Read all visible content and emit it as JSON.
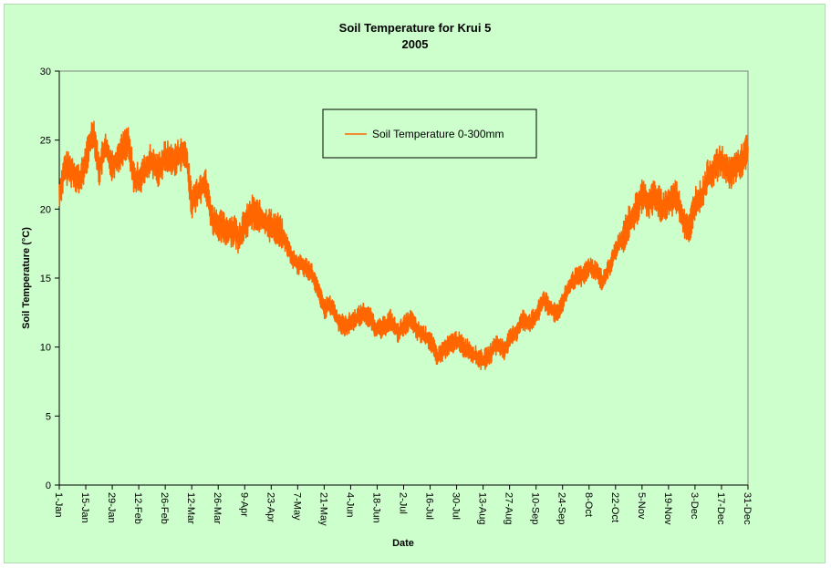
{
  "chart_data": {
    "type": "line",
    "title": "Soil Temperature for Krui 5",
    "subtitle": "2005",
    "xlabel": "Date",
    "ylabel": "Soil Temperature (°C)",
    "ylim": [
      0,
      30
    ],
    "yticks": [
      "0",
      "5",
      "10",
      "15",
      "20",
      "25",
      "30"
    ],
    "xlim": [
      "2005-01-01",
      "2005-12-31"
    ],
    "xtick_labels": [
      "1-Jan",
      "15-Jan",
      "29-Jan",
      "12-Feb",
      "26-Feb",
      "12-Mar",
      "26-Mar",
      "9-Apr",
      "23-Apr",
      "7-May",
      "21-May",
      "4-Jun",
      "18-Jun",
      "2-Jul",
      "16-Jul",
      "30-Jul",
      "13-Aug",
      "27-Aug",
      "10-Sep",
      "24-Sep",
      "8-Oct",
      "22-Oct",
      "5-Nov",
      "19-Nov",
      "3-Dec",
      "17-Dec",
      "31-Dec"
    ],
    "grid": false,
    "legend": {
      "position": "top-center",
      "entries": [
        "Soil Temperature  0-300mm"
      ]
    },
    "series": [
      {
        "name": "Soil Temperature  0-300mm",
        "color": "#ff6600",
        "x": [
          "2005-01-01",
          "2005-01-04",
          "2005-01-08",
          "2005-01-12",
          "2005-01-15",
          "2005-01-19",
          "2005-01-22",
          "2005-01-25",
          "2005-01-29",
          "2005-02-02",
          "2005-02-06",
          "2005-02-10",
          "2005-02-14",
          "2005-02-18",
          "2005-02-22",
          "2005-02-26",
          "2005-03-02",
          "2005-03-06",
          "2005-03-09",
          "2005-03-12",
          "2005-03-16",
          "2005-03-19",
          "2005-03-23",
          "2005-03-26",
          "2005-03-30",
          "2005-04-03",
          "2005-04-06",
          "2005-04-09",
          "2005-04-13",
          "2005-04-16",
          "2005-04-20",
          "2005-04-23",
          "2005-04-27",
          "2005-05-01",
          "2005-05-04",
          "2005-05-07",
          "2005-05-11",
          "2005-05-14",
          "2005-05-18",
          "2005-05-21",
          "2005-05-25",
          "2005-05-28",
          "2005-06-01",
          "2005-06-04",
          "2005-06-08",
          "2005-06-11",
          "2005-06-15",
          "2005-06-18",
          "2005-06-22",
          "2005-06-25",
          "2005-06-29",
          "2005-07-02",
          "2005-07-06",
          "2005-07-09",
          "2005-07-13",
          "2005-07-16",
          "2005-07-20",
          "2005-07-23",
          "2005-07-27",
          "2005-07-30",
          "2005-08-03",
          "2005-08-06",
          "2005-08-10",
          "2005-08-13",
          "2005-08-17",
          "2005-08-20",
          "2005-08-24",
          "2005-08-27",
          "2005-08-31",
          "2005-09-03",
          "2005-09-07",
          "2005-09-10",
          "2005-09-14",
          "2005-09-17",
          "2005-09-21",
          "2005-09-24",
          "2005-09-28",
          "2005-10-01",
          "2005-10-05",
          "2005-10-08",
          "2005-10-12",
          "2005-10-15",
          "2005-10-19",
          "2005-10-22",
          "2005-10-26",
          "2005-10-29",
          "2005-11-02",
          "2005-11-05",
          "2005-11-09",
          "2005-11-12",
          "2005-11-16",
          "2005-11-19",
          "2005-11-23",
          "2005-11-26",
          "2005-11-30",
          "2005-12-03",
          "2005-12-07",
          "2005-12-10",
          "2005-12-14",
          "2005-12-17",
          "2005-12-21",
          "2005-12-24",
          "2005-12-28",
          "2005-12-31"
        ],
        "y": [
          21.0,
          23.0,
          22.8,
          22.0,
          23.5,
          25.8,
          22.8,
          24.5,
          23.2,
          24.0,
          25.0,
          22.0,
          22.5,
          23.5,
          22.8,
          23.8,
          23.5,
          24.0,
          24.0,
          20.5,
          21.5,
          22.0,
          19.2,
          18.8,
          18.5,
          18.5,
          18.0,
          18.8,
          19.8,
          19.5,
          19.0,
          18.8,
          18.5,
          17.5,
          16.5,
          16.0,
          15.8,
          15.5,
          14.0,
          12.8,
          13.0,
          12.0,
          11.5,
          11.8,
          12.2,
          12.5,
          12.0,
          11.2,
          11.5,
          12.0,
          11.0,
          11.5,
          12.0,
          11.2,
          10.8,
          10.5,
          9.2,
          9.8,
          10.2,
          10.5,
          10.0,
          9.8,
          9.2,
          9.0,
          9.5,
          10.2,
          9.8,
          10.5,
          11.2,
          12.0,
          11.8,
          12.2,
          13.5,
          12.8,
          12.5,
          13.2,
          14.5,
          15.0,
          15.2,
          15.8,
          15.5,
          14.8,
          15.8,
          17.0,
          18.0,
          19.0,
          20.0,
          21.0,
          20.5,
          21.0,
          20.0,
          20.5,
          21.0,
          19.5,
          18.5,
          20.5,
          21.0,
          22.5,
          23.0,
          23.5,
          22.5,
          23.0,
          23.5,
          24.5
        ]
      }
    ]
  }
}
